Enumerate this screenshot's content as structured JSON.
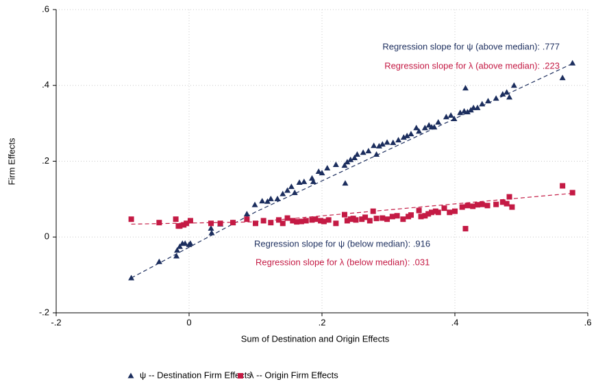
{
  "chart_data": {
    "type": "scatter",
    "xlabel": "Sum of Destination and Origin Effects",
    "ylabel": "Firm Effects",
    "xlim": [
      -0.2,
      0.6
    ],
    "ylim": [
      -0.2,
      0.6
    ],
    "xticks": [
      {
        "value": -0.2,
        "label": "-.2"
      },
      0,
      {
        "value": 0.2,
        "label": ".2"
      },
      {
        "value": 0.4,
        "label": ".4"
      },
      {
        "value": 0.6,
        "label": ".6"
      }
    ],
    "yticks": [
      {
        "value": -0.2,
        "label": "-.2"
      },
      0,
      {
        "value": 0.2,
        "label": ".2"
      },
      {
        "value": 0.4,
        "label": ".4"
      },
      {
        "value": 0.6,
        "label": ".6"
      }
    ],
    "grid": true,
    "legend": "bottom",
    "series": [
      {
        "name": "ψ -- Destination Firm Effects",
        "color": "#1c2e5e",
        "marker": "triangle",
        "x": [
          -0.087,
          -0.045,
          -0.019,
          -0.018,
          -0.014,
          -0.01,
          -0.006,
          0,
          0.002,
          0.033,
          0.034,
          0.047,
          0.066,
          0.087,
          0.099,
          0.11,
          0.118,
          0.123,
          0.133,
          0.141,
          0.148,
          0.154,
          0.159,
          0.166,
          0.173,
          0.185,
          0.187,
          0.195,
          0.2,
          0.208,
          0.221,
          0.234,
          0.235,
          0.238,
          0.243,
          0.249,
          0.253,
          0.262,
          0.27,
          0.278,
          0.282,
          0.286,
          0.291,
          0.298,
          0.307,
          0.315,
          0.323,
          0.328,
          0.334,
          0.342,
          0.346,
          0.355,
          0.361,
          0.365,
          0.369,
          0.375,
          0.387,
          0.394,
          0.399,
          0.408,
          0.414,
          0.416,
          0.419,
          0.424,
          0.428,
          0.434,
          0.441,
          0.45,
          0.462,
          0.472,
          0.478,
          0.482,
          0.489,
          0.562,
          0.577
        ],
        "values": [
          -0.108,
          -0.065,
          -0.05,
          -0.035,
          -0.025,
          -0.017,
          -0.017,
          -0.02,
          -0.017,
          0.023,
          0.011,
          0.034,
          0.038,
          0.061,
          0.085,
          0.095,
          0.094,
          0.101,
          0.101,
          0.114,
          0.123,
          0.133,
          0.117,
          0.144,
          0.146,
          0.155,
          0.146,
          0.173,
          0.169,
          0.182,
          0.191,
          0.189,
          0.142,
          0.198,
          0.204,
          0.209,
          0.218,
          0.223,
          0.227,
          0.241,
          0.218,
          0.24,
          0.245,
          0.25,
          0.249,
          0.256,
          0.263,
          0.267,
          0.272,
          0.288,
          0.279,
          0.288,
          0.295,
          0.29,
          0.29,
          0.303,
          0.317,
          0.321,
          0.312,
          0.328,
          0.332,
          0.393,
          0.33,
          0.335,
          0.341,
          0.341,
          0.351,
          0.359,
          0.366,
          0.377,
          0.382,
          0.369,
          0.4,
          0.42,
          0.459
        ]
      },
      {
        "name": "λ -- Origin Firm Effects",
        "color": "#c41a44",
        "marker": "square",
        "x": [
          -0.087,
          -0.045,
          -0.02,
          -0.016,
          -0.014,
          -0.008,
          -0.004,
          0.002,
          0.033,
          0.047,
          0.066,
          0.087,
          0.1,
          0.112,
          0.123,
          0.135,
          0.141,
          0.148,
          0.156,
          0.162,
          0.169,
          0.176,
          0.185,
          0.19,
          0.198,
          0.203,
          0.21,
          0.221,
          0.234,
          0.238,
          0.243,
          0.247,
          0.251,
          0.26,
          0.265,
          0.272,
          0.277,
          0.282,
          0.291,
          0.298,
          0.306,
          0.313,
          0.322,
          0.33,
          0.334,
          0.346,
          0.349,
          0.355,
          0.36,
          0.365,
          0.371,
          0.375,
          0.384,
          0.392,
          0.4,
          0.411,
          0.416,
          0.419,
          0.427,
          0.434,
          0.441,
          0.449,
          0.462,
          0.472,
          0.478,
          0.482,
          0.486,
          0.562,
          0.577
        ],
        "values": [
          0.047,
          0.038,
          0.047,
          0.029,
          0.029,
          0.032,
          0.036,
          0.043,
          0.036,
          0.036,
          0.038,
          0.047,
          0.036,
          0.043,
          0.038,
          0.045,
          0.036,
          0.05,
          0.043,
          0.04,
          0.041,
          0.043,
          0.045,
          0.047,
          0.043,
          0.041,
          0.045,
          0.036,
          0.059,
          0.043,
          0.047,
          0.049,
          0.045,
          0.047,
          0.052,
          0.043,
          0.068,
          0.049,
          0.05,
          0.047,
          0.054,
          0.056,
          0.047,
          0.054,
          0.058,
          0.07,
          0.054,
          0.056,
          0.061,
          0.065,
          0.068,
          0.065,
          0.076,
          0.065,
          0.068,
          0.079,
          0.022,
          0.083,
          0.081,
          0.085,
          0.086,
          0.083,
          0.086,
          0.092,
          0.088,
          0.106,
          0.079,
          0.135,
          0.117
        ]
      }
    ],
    "fit_lines": [
      {
        "color": "#1c2e5e",
        "x": [
          -0.087,
          0.1,
          0.575
        ],
        "values": [
          -0.108,
          0.066,
          0.456
        ]
      },
      {
        "color": "#c41a44",
        "x": [
          -0.087,
          0.1,
          0.575
        ],
        "values": [
          0.034,
          0.04,
          0.115
        ]
      }
    ],
    "annotations": [
      {
        "text": "Regression slope for ψ (above median): .777",
        "color": "#1c2e5e"
      },
      {
        "text": "Regression slope for λ (above median): .223",
        "color": "#c41a44"
      },
      {
        "text": "Regression slope for ψ (below median): .916",
        "color": "#1c2e5e"
      },
      {
        "text": "Regression slope for λ (below median): .031",
        "color": "#c41a44"
      }
    ]
  }
}
